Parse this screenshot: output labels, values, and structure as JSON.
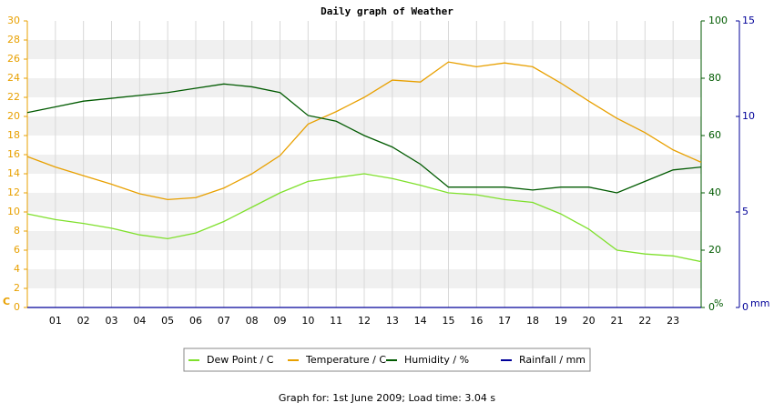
{
  "chart_data": {
    "type": "line",
    "title": "Daily graph of Weather",
    "footer": "Graph for: 1st June 2009; Load time: 3.04 s",
    "ylabel": "C",
    "y2label": "%",
    "y3label": "mm",
    "x": [
      0,
      1,
      2,
      3,
      4,
      5,
      6,
      7,
      8,
      9,
      10,
      11,
      12,
      13,
      14,
      15,
      16,
      17,
      18,
      19,
      20,
      21,
      22,
      23,
      24
    ],
    "xlim": [
      0,
      24
    ],
    "xticks": [
      {
        "value": 1,
        "label": "01"
      },
      {
        "value": 2,
        "label": "02"
      },
      {
        "value": 3,
        "label": "03"
      },
      {
        "value": 4,
        "label": "04"
      },
      {
        "value": 5,
        "label": "05"
      },
      {
        "value": 6,
        "label": "06"
      },
      {
        "value": 7,
        "label": "07"
      },
      {
        "value": 8,
        "label": "08"
      },
      {
        "value": 9,
        "label": "09"
      },
      {
        "value": 10,
        "label": "10"
      },
      {
        "value": 11,
        "label": "11"
      },
      {
        "value": 12,
        "label": "12"
      },
      {
        "value": 13,
        "label": "13"
      },
      {
        "value": 14,
        "label": "14"
      },
      {
        "value": 15,
        "label": "15"
      },
      {
        "value": 16,
        "label": "16"
      },
      {
        "value": 17,
        "label": "17"
      },
      {
        "value": 18,
        "label": "18"
      },
      {
        "value": 19,
        "label": "19"
      },
      {
        "value": 20,
        "label": "20"
      },
      {
        "value": 21,
        "label": "21"
      },
      {
        "value": 22,
        "label": "22"
      },
      {
        "value": 23,
        "label": "23"
      }
    ],
    "ylim": [
      0,
      30
    ],
    "yticks": [
      0,
      2,
      4,
      6,
      8,
      10,
      12,
      14,
      16,
      18,
      20,
      22,
      24,
      26,
      28,
      30
    ],
    "y2lim": [
      0,
      100
    ],
    "y2ticks": [
      0,
      20,
      40,
      60,
      80,
      100
    ],
    "y3lim": [
      0,
      15
    ],
    "y3ticks": [
      0,
      5,
      10,
      15
    ],
    "grid": true,
    "series": [
      {
        "name": "Dew Point / C",
        "color": "#7fe02c",
        "values": [
          9.8,
          9.2,
          8.8,
          8.3,
          7.6,
          7.2,
          7.8,
          9.0,
          10.5,
          12.0,
          13.2,
          13.6,
          14.0,
          13.5,
          12.8,
          12.0,
          11.8,
          11.3,
          11.0,
          9.8,
          8.2,
          6.0,
          5.6,
          5.4,
          4.8
        ]
      },
      {
        "name": "Temperature / C",
        "color": "#e8a000",
        "values": [
          15.8,
          14.7,
          13.8,
          12.9,
          11.9,
          11.3,
          11.5,
          12.5,
          14.0,
          15.9,
          19.2,
          20.5,
          22.0,
          23.8,
          23.6,
          25.7,
          25.2,
          25.6,
          25.2,
          23.5,
          21.6,
          19.8,
          18.3,
          16.5,
          15.2
        ]
      },
      {
        "name": "Humidity / %",
        "color": "#005a00",
        "axis": "y2",
        "values": [
          68,
          70,
          72,
          73,
          74,
          75,
          76.5,
          78,
          77,
          75,
          67,
          65,
          60,
          56,
          50,
          42,
          42,
          42,
          41,
          42,
          42,
          40,
          44,
          48,
          49
        ]
      },
      {
        "name": "Rainfall / mm",
        "color": "#000099",
        "axis": "y3",
        "values": [
          0,
          0,
          0,
          0,
          0,
          0,
          0,
          0,
          0,
          0,
          0,
          0,
          0,
          0,
          0,
          0,
          0,
          0,
          0,
          0,
          0,
          0,
          0,
          0,
          0
        ]
      }
    ]
  }
}
